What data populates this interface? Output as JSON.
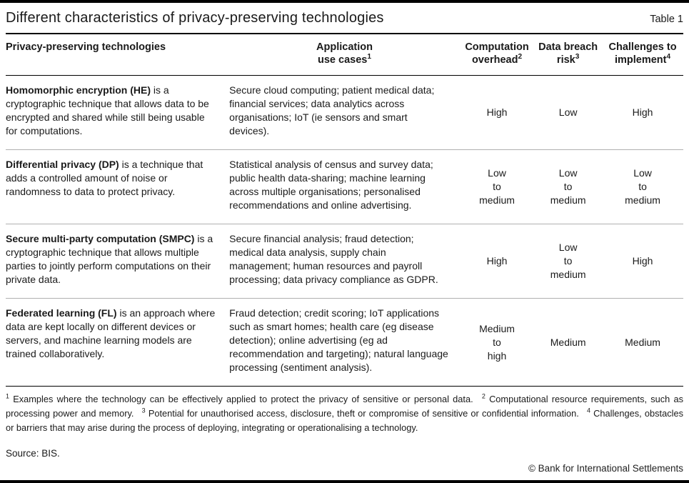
{
  "header": {
    "title": "Different characteristics of privacy-preserving technologies",
    "table_label": "Table 1"
  },
  "table": {
    "columns": [
      {
        "label": "Privacy-preserving technologies",
        "sup": ""
      },
      {
        "label": "Application\nuse cases",
        "sup": "1"
      },
      {
        "label": "Computation\noverhead",
        "sup": "2"
      },
      {
        "label": "Data breach\nrisk",
        "sup": "3"
      },
      {
        "label": "Challenges to\nimplement",
        "sup": "4"
      }
    ],
    "rows": [
      {
        "tech_name": "Homomorphic encryption (HE)",
        "tech_desc": " is a cryptographic technique that allows data to be encrypted and shared while still being usable for computations.",
        "use_cases": "Secure cloud computing; patient medical data; financial services; data analytics across organisations; IoT (ie sensors and smart devices).",
        "computation_overhead": "High",
        "data_breach_risk": "Low",
        "challenges_to_implement": "High"
      },
      {
        "tech_name": "Differential privacy (DP)",
        "tech_desc": " is a technique that adds a controlled amount of noise or randomness to data to protect privacy.",
        "use_cases": "Statistical analysis of census and survey data; public health data-sharing; machine learning across multiple organisations; personalised recommendations and online advertising.",
        "computation_overhead": "Low\nto\nmedium",
        "data_breach_risk": "Low\nto\nmedium",
        "challenges_to_implement": "Low\nto\nmedium"
      },
      {
        "tech_name": "Secure multi-party computation (SMPC)",
        "tech_desc": " is a cryptographic technique that allows multiple parties to jointly perform computations on their private data.",
        "use_cases": "Secure financial analysis; fraud detection; medical data analysis, supply chain management; human resources and payroll processing; data privacy compliance as GDPR.",
        "computation_overhead": "High",
        "data_breach_risk": "Low\nto\nmedium",
        "challenges_to_implement": "High"
      },
      {
        "tech_name": "Federated learning (FL)",
        "tech_desc": " is an approach where data are kept locally on different devices or servers, and machine learning models are trained collaboratively.",
        "use_cases": "Fraud detection; credit scoring; IoT applications such as smart homes; health care (eg disease detection); online advertising (eg ad recommendation and targeting); natural language processing (sentiment analysis).",
        "computation_overhead": "Medium\nto\nhigh",
        "data_breach_risk": "Medium",
        "challenges_to_implement": "Medium"
      }
    ]
  },
  "footnotes": [
    {
      "sup": "1",
      "text": "Examples where the technology can be effectively applied to protect the privacy of sensitive or personal data."
    },
    {
      "sup": "2",
      "text": "Computational resource requirements, such as processing power and memory."
    },
    {
      "sup": "3",
      "text": "Potential for unauthorised access, disclosure, theft or compromise of sensitive or confidential information."
    },
    {
      "sup": "4",
      "text": "Challenges, obstacles or barriers that may arise during the process of deploying, integrating or operationalising a technology."
    }
  ],
  "source": "Source: BIS.",
  "copyright": "© Bank for International Settlements"
}
